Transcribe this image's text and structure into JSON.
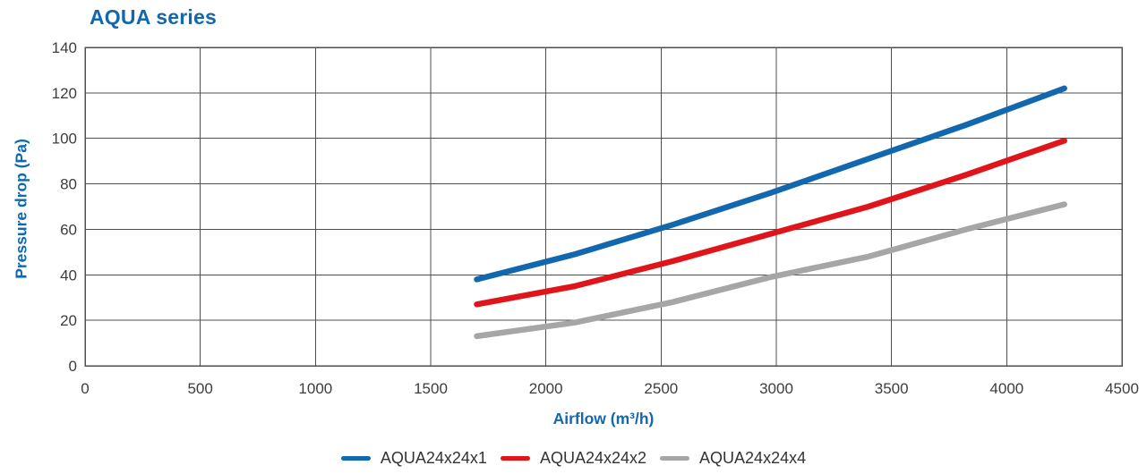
{
  "colors": {
    "heading": "#1268ae",
    "axis_label": "#1268ae",
    "tick_label": "#3d3d3d",
    "legend_text": "#333333",
    "grid": "#4f4f4f",
    "background": "#ffffff"
  },
  "chart_data": {
    "type": "line",
    "title": "AQUA series",
    "xlabel": "Airflow (m³/h)",
    "ylabel": "Pressure drop (Pa)",
    "xlim": [
      0,
      4500
    ],
    "ylim": [
      0,
      140
    ],
    "x_ticks": [
      0,
      500,
      1000,
      1500,
      2000,
      2500,
      3000,
      3500,
      4000,
      4500
    ],
    "y_ticks": [
      0,
      20,
      40,
      60,
      80,
      100,
      120,
      140
    ],
    "grid": true,
    "legend_position": "bottom",
    "x": [
      1700,
      2125,
      2550,
      2975,
      3400,
      3825,
      4250
    ],
    "series": [
      {
        "name": "AQUA24x24x1",
        "color": "#1268ae",
        "values": [
          38,
          49,
          62,
          76,
          91,
          106,
          122
        ]
      },
      {
        "name": "AQUA24x24x2",
        "color": "#e0151b",
        "values": [
          27,
          35,
          46,
          58,
          70,
          84,
          99
        ]
      },
      {
        "name": "AQUA24x24x4",
        "color": "#a6a6a6",
        "values": [
          13,
          19,
          28,
          39,
          48,
          60,
          71
        ]
      }
    ]
  }
}
